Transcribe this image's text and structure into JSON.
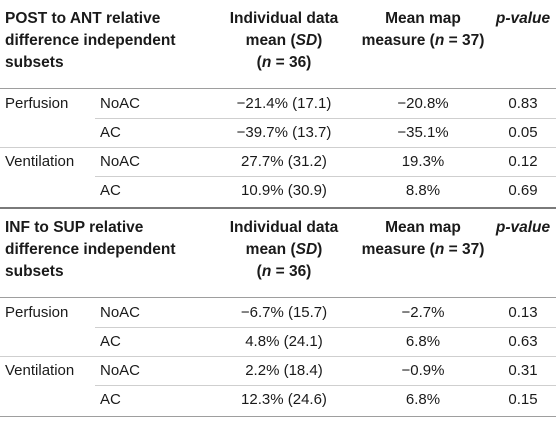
{
  "sections": [
    {
      "title_lines": [
        "POST to ANT relative",
        "difference independent",
        "subsets"
      ],
      "col_individual_lines": [
        "Individual data",
        "mean (SD)",
        "(n = 36)"
      ],
      "col_map_lines": [
        "Mean map",
        "measure (n = 37)"
      ],
      "col_p": "p-value",
      "rows": [
        {
          "group": "Perfusion",
          "subset": "NoAC",
          "individual": "−21.4% (17.1)",
          "map": "−20.8%",
          "p": "0.83"
        },
        {
          "group": "",
          "subset": "AC",
          "individual": "−39.7% (13.7)",
          "map": "−35.1%",
          "p": "0.05"
        },
        {
          "group": "Ventilation",
          "subset": "NoAC",
          "individual": "27.7% (31.2)",
          "map": "19.3%",
          "p": "0.12"
        },
        {
          "group": "",
          "subset": "AC",
          "individual": "10.9% (30.9)",
          "map": "8.8%",
          "p": "0.69"
        }
      ]
    },
    {
      "title_lines": [
        "INF to SUP relative",
        "difference independent",
        "subsets"
      ],
      "col_individual_lines": [
        "Individual data",
        "mean (SD)",
        "(n = 36)"
      ],
      "col_map_lines": [
        "Mean map",
        "measure (n = 37)"
      ],
      "col_p": "p-value",
      "rows": [
        {
          "group": "Perfusion",
          "subset": "NoAC",
          "individual": "−6.7% (15.7)",
          "map": "−2.7%",
          "p": "0.13"
        },
        {
          "group": "",
          "subset": "AC",
          "individual": "4.8% (24.1)",
          "map": "6.8%",
          "p": "0.63"
        },
        {
          "group": "Ventilation",
          "subset": "NoAC",
          "individual": "2.2% (18.4)",
          "map": "−0.9%",
          "p": "0.31"
        },
        {
          "group": "",
          "subset": "AC",
          "individual": "12.3% (24.6)",
          "map": "6.8%",
          "p": "0.15"
        }
      ]
    }
  ]
}
